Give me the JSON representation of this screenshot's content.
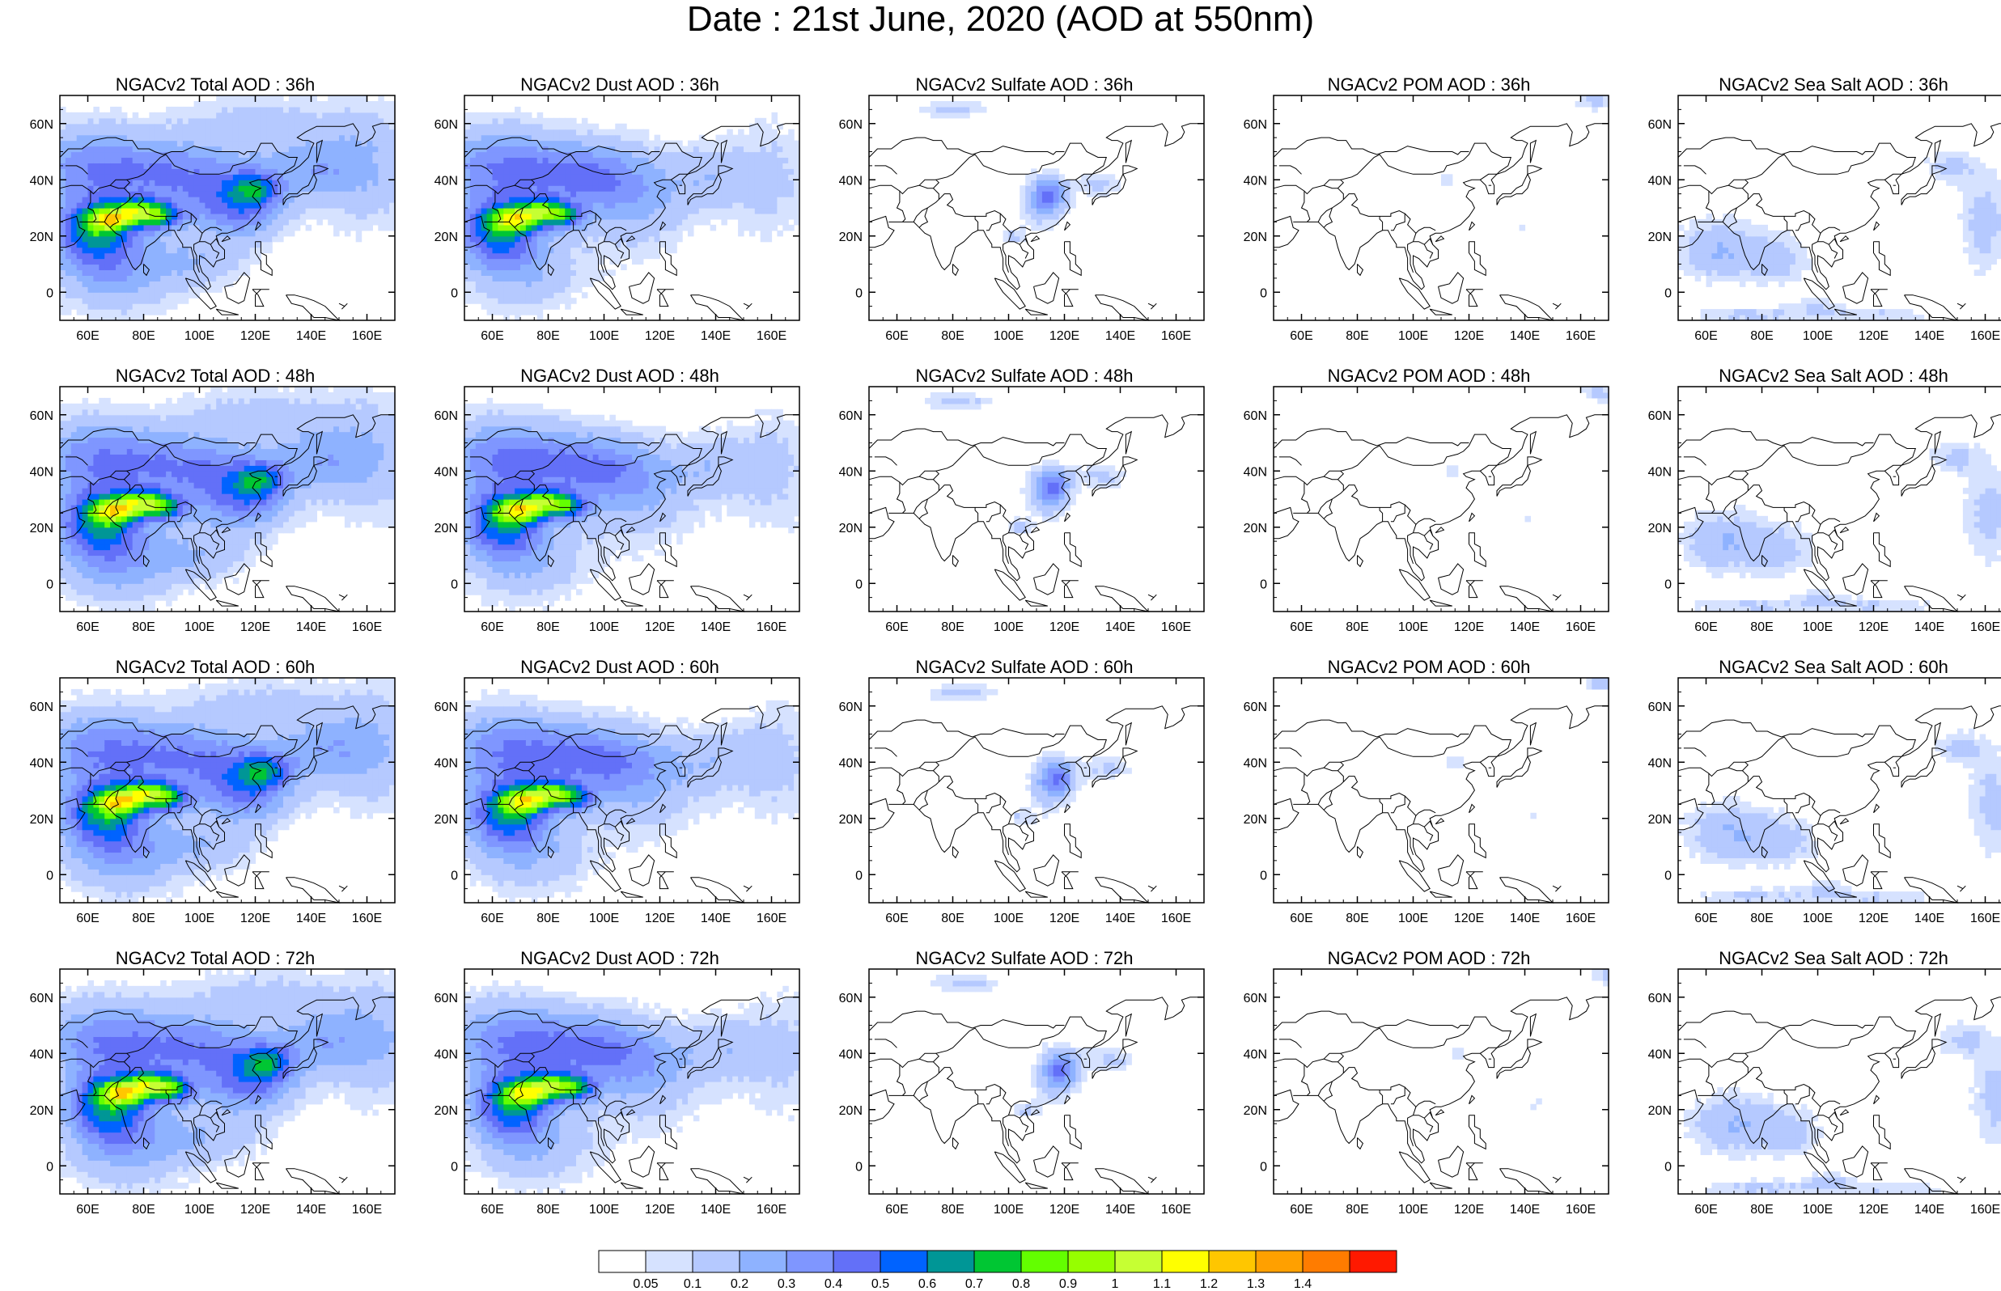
{
  "title": "Date : 21st June, 2020 (AOD at 550nm)",
  "longitude_ticks": [
    "60E",
    "80E",
    "100E",
    "120E",
    "140E",
    "160E"
  ],
  "latitude_ticks": [
    "60N",
    "40N",
    "20N",
    "0"
  ],
  "panels": [
    {
      "title": "NGACv2 Total AOD : 36h",
      "species": "total",
      "lead": 36
    },
    {
      "title": "NGACv2 Dust AOD : 36h",
      "species": "dust",
      "lead": 36
    },
    {
      "title": "NGACv2 Sulfate AOD : 36h",
      "species": "sulfate",
      "lead": 36
    },
    {
      "title": "NGACv2 POM AOD : 36h",
      "species": "pom",
      "lead": 36
    },
    {
      "title": "NGACv2 Sea Salt AOD : 36h",
      "species": "seasalt",
      "lead": 36
    },
    {
      "title": "NGACv2 Total AOD : 48h",
      "species": "total",
      "lead": 48
    },
    {
      "title": "NGACv2 Dust AOD : 48h",
      "species": "dust",
      "lead": 48
    },
    {
      "title": "NGACv2 Sulfate AOD : 48h",
      "species": "sulfate",
      "lead": 48
    },
    {
      "title": "NGACv2 POM AOD : 48h",
      "species": "pom",
      "lead": 48
    },
    {
      "title": "NGACv2 Sea Salt AOD : 48h",
      "species": "seasalt",
      "lead": 48
    },
    {
      "title": "NGACv2 Total AOD : 60h",
      "species": "total",
      "lead": 60
    },
    {
      "title": "NGACv2 Dust AOD : 60h",
      "species": "dust",
      "lead": 60
    },
    {
      "title": "NGACv2 Sulfate AOD : 60h",
      "species": "sulfate",
      "lead": 60
    },
    {
      "title": "NGACv2 POM AOD : 60h",
      "species": "pom",
      "lead": 60
    },
    {
      "title": "NGACv2 Sea Salt AOD : 60h",
      "species": "seasalt",
      "lead": 60
    },
    {
      "title": "NGACv2 Total AOD : 72h",
      "species": "total",
      "lead": 72
    },
    {
      "title": "NGACv2 Dust AOD : 72h",
      "species": "dust",
      "lead": 72
    },
    {
      "title": "NGACv2 Sulfate AOD : 72h",
      "species": "sulfate",
      "lead": 72
    },
    {
      "title": "NGACv2 POM AOD : 72h",
      "species": "pom",
      "lead": 72
    },
    {
      "title": "NGACv2 Sea Salt  AOD : 72h",
      "species": "seasalt",
      "lead": 72
    }
  ],
  "colorbar": {
    "labels": [
      "0.05",
      "0.1",
      "0.2",
      "0.3",
      "0.4",
      "0.5",
      "0.6",
      "0.7",
      "0.8",
      "0.9",
      "1",
      "1.1",
      "1.2",
      "1.3",
      "1.4"
    ],
    "colors": [
      "#ffffff",
      "#d6e2ff",
      "#b5c9ff",
      "#8eb2ff",
      "#7f96ff",
      "#6370f8",
      "#0063ff",
      "#009696",
      "#00c633",
      "#63ff00",
      "#96ff00",
      "#c6ff33",
      "#ffff00",
      "#ffc600",
      "#ffa000",
      "#ff7c00",
      "#ff1900"
    ]
  }
}
